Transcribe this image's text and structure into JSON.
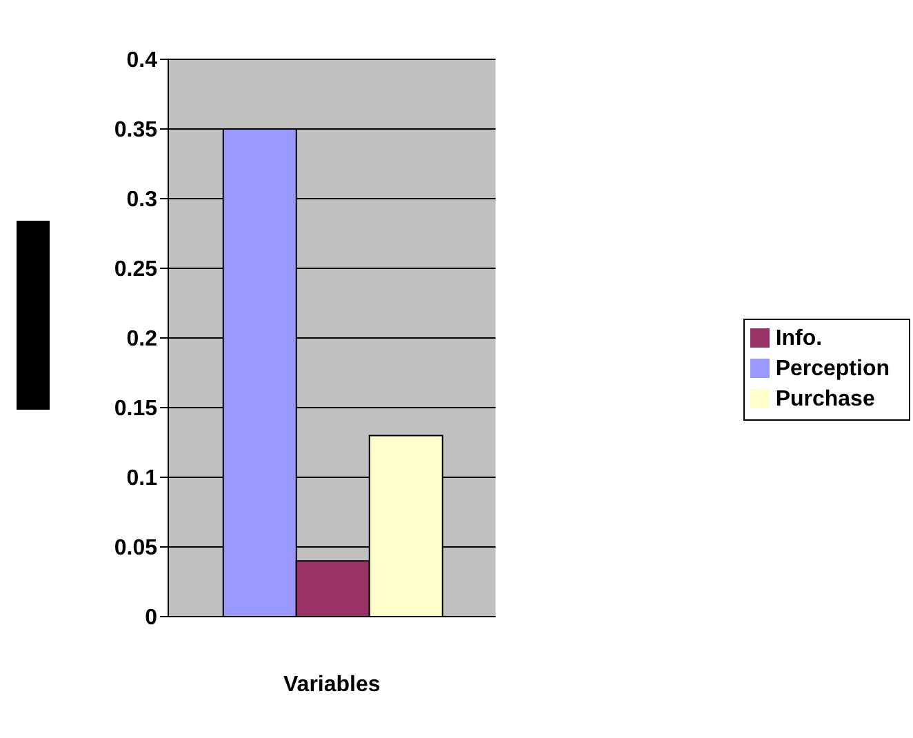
{
  "chart_data": {
    "type": "bar",
    "xlabel": "Variables",
    "categories": [
      null
    ],
    "series": [
      {
        "name": "Perception",
        "color": "#9999ff",
        "values": [
          0.35
        ]
      },
      {
        "name": "Info.",
        "color": "#993366",
        "values": [
          0.04
        ]
      },
      {
        "name": "Purchase",
        "color": "#ffffcc",
        "values": [
          0.13
        ]
      }
    ],
    "ylim": [
      0,
      0.4
    ],
    "yticks": [
      0,
      0.05,
      0.1,
      0.15,
      0.2,
      0.25,
      0.3,
      0.35,
      0.4
    ],
    "grid": "y",
    "legend": "right"
  }
}
